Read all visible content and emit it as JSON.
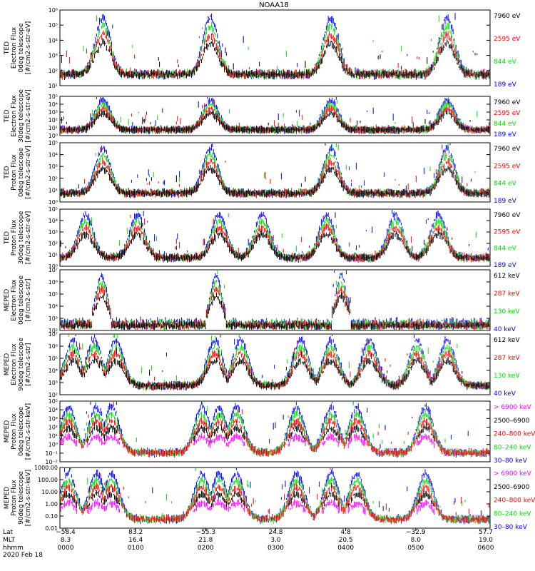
{
  "title": "NOAA18",
  "colors": {
    "black": "#000000",
    "red": "#ff0000",
    "green": "#00e000",
    "blue": "#0000ff",
    "magenta": "#ff00ff"
  },
  "chart_data": [
    {
      "type": "line",
      "ylabel": [
        "TED",
        "Electron Flux",
        "0deg telescope",
        "[#/cm2-s-str-eV]"
      ],
      "yticks": [
        "10¹",
        "10²",
        "10³",
        "10⁴",
        "10⁵",
        "10⁶"
      ],
      "legend": [
        {
          "label": "7960 eV",
          "color": "black"
        },
        {
          "label": "2595 eV",
          "color": "red"
        },
        {
          "label": "844 eV",
          "color": "green"
        },
        {
          "label": "189 eV",
          "color": "blue"
        }
      ],
      "style": "ted_e"
    },
    {
      "type": "line",
      "ylabel": [
        "TED",
        "Electron Flux",
        "30deg telescope",
        "[#/cm2-s-str-eV]"
      ],
      "yticks": [
        "10⁰",
        "10¹",
        "10²",
        "10³",
        "10⁴",
        "10⁵"
      ],
      "legend": [
        {
          "label": "7960 eV",
          "color": "black"
        },
        {
          "label": "2595 eV",
          "color": "red"
        },
        {
          "label": "844 eV",
          "color": "green"
        },
        {
          "label": "189 eV",
          "color": "blue"
        }
      ],
      "style": "ted_e"
    },
    {
      "type": "line",
      "ylabel": [
        "TED",
        "Proton Flux",
        "0deg telescope",
        "[#/cm2-s-str-eV]"
      ],
      "yticks": [
        "10⁰",
        "10¹",
        "10²",
        "10³",
        "10⁴",
        "10⁵"
      ],
      "legend": [
        {
          "label": "7960 eV",
          "color": "black"
        },
        {
          "label": "2595 eV",
          "color": "red"
        },
        {
          "label": "844 eV",
          "color": "green"
        },
        {
          "label": "189 eV",
          "color": "blue"
        }
      ],
      "style": "ted_p"
    },
    {
      "type": "line",
      "ylabel": [
        "TED",
        "Proton Flux",
        "30deg telescope",
        "[#/cm2-s-str-eV]"
      ],
      "yticks": [
        "10⁰",
        "10¹",
        "10²",
        "10³",
        "10⁴",
        "10⁵"
      ],
      "legend": [
        {
          "label": "7960 eV",
          "color": "black"
        },
        {
          "label": "2595 eV",
          "color": "red"
        },
        {
          "label": "844 eV",
          "color": "green"
        },
        {
          "label": "189 eV",
          "color": "blue"
        }
      ],
      "style": "ted_p30"
    },
    {
      "type": "line",
      "ylabel": [
        "MEPED",
        "Electron Flux",
        "0deg telescope",
        "[#/cm2-s-str]"
      ],
      "yticks": [
        "10²",
        "10³",
        "10⁴",
        "10⁵",
        "10⁶",
        "10⁷"
      ],
      "legend": [
        {
          "label": "612 keV",
          "color": "black"
        },
        {
          "label": "287 keV",
          "color": "red"
        },
        {
          "label": "130 keV",
          "color": "green"
        },
        {
          "label": "40 keV",
          "color": "blue"
        }
      ],
      "style": "meped_e0"
    },
    {
      "type": "line",
      "ylabel": [
        "MEPED",
        "Electron Flux",
        "90deg telescope",
        "[#/cm2-s-str]"
      ],
      "yticks": [
        "10²",
        "10³",
        "10⁴",
        "10⁵",
        "10⁶",
        "10⁷"
      ],
      "legend": [
        {
          "label": "612 keV",
          "color": "black"
        },
        {
          "label": "287 keV",
          "color": "red"
        },
        {
          "label": "130 keV",
          "color": "green"
        },
        {
          "label": "40 keV",
          "color": "blue"
        }
      ],
      "style": "meped_e90"
    },
    {
      "type": "line",
      "ylabel": [
        "MEPED",
        "Proton Flux",
        "0deg telescope",
        "[#/cm2-s-str-keV]"
      ],
      "yticks": [
        "10⁻²",
        "10⁻¹",
        "10⁰",
        "10¹",
        "10²",
        "10³",
        "10⁴",
        "10⁵"
      ],
      "legend": [
        {
          "label": "> 6900 keV",
          "color": "magenta"
        },
        {
          "label": "2500–6900",
          "color": "black"
        },
        {
          "label": "240–800 keV",
          "color": "red"
        },
        {
          "label": "80–240 keV",
          "color": "green"
        },
        {
          "label": "30–80 keV",
          "color": "blue"
        }
      ],
      "style": "meped_p"
    },
    {
      "type": "line",
      "ylabel": [
        "MEPED",
        "Proton Flux",
        "90deg telescope",
        "[#/cm2-s-str-keV]"
      ],
      "yticks": [
        "0.01",
        "0.10",
        "1.00",
        "10.00",
        "100.00",
        "1000.00"
      ],
      "legend": [
        {
          "label": "> 6900 keV",
          "color": "magenta"
        },
        {
          "label": "2500–6900",
          "color": "black"
        },
        {
          "label": "240–800 keV",
          "color": "red"
        },
        {
          "label": "80–240 keV",
          "color": "green"
        },
        {
          "label": "30–80 keV",
          "color": "blue"
        }
      ],
      "style": "meped_p"
    }
  ],
  "xaxis": {
    "row_labels": [
      "Lat",
      "MLT",
      "hhmm"
    ],
    "ticks": [
      {
        "lat": "−58.4",
        "mlt": "8.3",
        "hhmm": "0000"
      },
      {
        "lat": "83.2",
        "mlt": "16.4",
        "hhmm": "0100"
      },
      {
        "lat": "−55.3",
        "mlt": "21.8",
        "hhmm": "0200"
      },
      {
        "lat": "24.8",
        "mlt": "3.0",
        "hhmm": "0300"
      },
      {
        "lat": "4.8",
        "mlt": "20.5",
        "hhmm": "0400"
      },
      {
        "lat": "−32.9",
        "mlt": "8.0",
        "hhmm": "0500"
      },
      {
        "lat": "57.7",
        "mlt": "19.0",
        "hhmm": "0600"
      }
    ],
    "date": "2020 Feb 18"
  }
}
